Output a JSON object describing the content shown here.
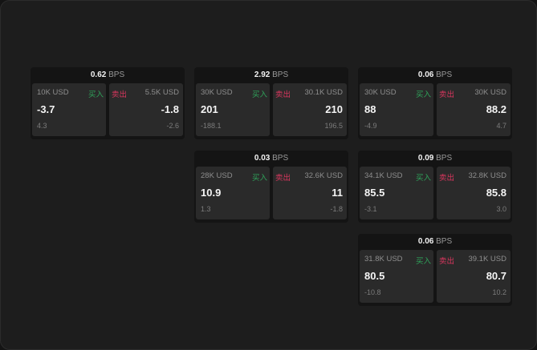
{
  "labels": {
    "buy": "买入",
    "sell": "卖出",
    "unit": "BPS"
  },
  "colors": {
    "buy": "#2fa35a",
    "sell": "#d9365e"
  },
  "cards": [
    {
      "spread": "0.62",
      "buy": {
        "qty": "10K USD",
        "price": "-3.7",
        "change": "4.3"
      },
      "sell": {
        "qty": "5.5K USD",
        "price": "-1.8",
        "change": "-2.6"
      }
    },
    {
      "spread": "2.92",
      "buy": {
        "qty": "30K USD",
        "price": "201",
        "change": "-188.1"
      },
      "sell": {
        "qty": "30.1K USD",
        "price": "210",
        "change": "196.5"
      }
    },
    {
      "spread": "0.06",
      "buy": {
        "qty": "30K USD",
        "price": "88",
        "change": "-4.9"
      },
      "sell": {
        "qty": "30K USD",
        "price": "88.2",
        "change": "4.7"
      }
    },
    {
      "spread": "0.03",
      "buy": {
        "qty": "28K USD",
        "price": "10.9",
        "change": "1.3"
      },
      "sell": {
        "qty": "32.6K USD",
        "price": "11",
        "change": "-1.8"
      }
    },
    {
      "spread": "0.09",
      "buy": {
        "qty": "34.1K USD",
        "price": "85.5",
        "change": "-3.1"
      },
      "sell": {
        "qty": "32.8K USD",
        "price": "85.8",
        "change": "3.0"
      }
    },
    {
      "spread": "0.06",
      "buy": {
        "qty": "31.8K USD",
        "price": "80.5",
        "change": "-10.8"
      },
      "sell": {
        "qty": "39.1K USD",
        "price": "80.7",
        "change": "10.2"
      }
    }
  ]
}
